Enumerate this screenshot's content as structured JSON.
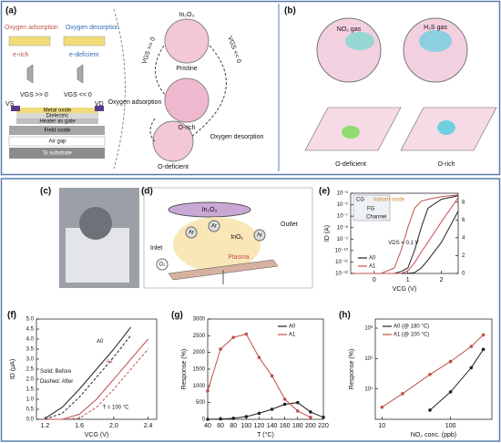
{
  "panels": {
    "a": {
      "label": "(a)",
      "oxygen_adsorption": "Oxygen adsorption",
      "oxygen_desorption": "Oxygen desorption",
      "e_rich": "e-rich",
      "e_deficient": "e-deficient",
      "vgs_pos": "VGS >> 0",
      "vgs_neg": "VGS << 0",
      "vs": "VS",
      "vd": "VD",
      "layers": [
        "Metal oxide",
        "Dielectric",
        "Heater as gate",
        "Field oxide",
        "Air gap",
        "Si substrate"
      ],
      "material": "In₂O₃",
      "states": [
        "Pristine",
        "O-rich",
        "O-deficient"
      ],
      "path_adsorption": "Oxygen adsorption",
      "path_desorption": "Oxygen desorption"
    },
    "b": {
      "label": "(b)",
      "gases": [
        "NO₂ gas",
        "H₂S gas"
      ],
      "states": [
        "O-deficient",
        "O-rich"
      ]
    },
    "c": {
      "label": "(c)"
    },
    "d": {
      "label": "(d)",
      "inlet": "Inlet",
      "outlet": "Outlet",
      "target": "In₂O₃",
      "plasma": "Plasma",
      "product": "InOₓ",
      "ion": "Ar",
      "oxygen": "O₂"
    },
    "e": {
      "label": "(e)",
      "inset": [
        "CG",
        "Indium oxide",
        "FG",
        "Channel"
      ]
    },
    "f": {
      "label": "(f)"
    },
    "g": {
      "label": "(g)"
    },
    "h": {
      "label": "(h)"
    }
  },
  "chart_data": [
    {
      "type": "line",
      "ylabel": "ID (A)",
      "xlabel": "VCG (V)",
      "ylog": true,
      "xlim": [
        -0.7,
        2.5
      ],
      "xticks": [
        0,
        1,
        2
      ],
      "ylim": [
        1e-12,
        1e-05
      ],
      "yticks": [
        {
          "value": 1e-12,
          "label": "10⁻¹²"
        },
        {
          "value": 1e-11,
          "label": "10⁻¹¹"
        },
        {
          "value": 1e-10,
          "label": "10⁻¹⁰"
        },
        {
          "value": 1e-09,
          "label": "10⁻⁹"
        },
        {
          "value": 1e-08,
          "label": "10⁻⁸"
        },
        {
          "value": 1e-07,
          "label": "10⁻⁷"
        },
        {
          "value": 1e-06,
          "label": "10⁻⁶"
        },
        {
          "value": 1e-05,
          "label": "10⁻⁵"
        }
      ],
      "y2lim": [
        0,
        9
      ],
      "y2ticks": [
        0,
        2,
        4,
        6,
        8
      ],
      "legend": "lower left",
      "annotations": [
        "VDS = 0.1 V"
      ],
      "x": [
        -0.6,
        -0.2,
        0.2,
        0.6,
        0.8,
        1.0,
        1.2,
        1.4,
        1.6,
        2.0,
        2.5
      ],
      "series": [
        {
          "name": "A0",
          "color": "#222222",
          "values": [
            1e-12,
            1e-12,
            1e-12,
            1e-12,
            1.5e-12,
            3e-12,
            1e-10,
            1e-08,
            5e-07,
            3e-06,
            6e-06
          ]
        },
        {
          "name": "A1",
          "color": "#c0504d",
          "values": [
            1e-12,
            1e-12,
            1e-12,
            3e-12,
            1e-10,
            1e-08,
            5e-07,
            2e-06,
            3e-06,
            5e-06,
            7e-06
          ]
        },
        {
          "name": "A0",
          "color": "#222222",
          "axis": "y2",
          "values": [
            0,
            0,
            0,
            0,
            0,
            0,
            0.1,
            0.6,
            1.5,
            3.5,
            7
          ]
        },
        {
          "name": "A1",
          "color": "#c0504d",
          "axis": "y2",
          "values": [
            0,
            0,
            0,
            0,
            0,
            0.3,
            1.2,
            2.4,
            3.5,
            5.8,
            8.5
          ]
        }
      ]
    },
    {
      "type": "line",
      "ylabel": "ID (μA)",
      "xlabel": "VCG (V)",
      "xlim": [
        1.1,
        2.5
      ],
      "xticks": [
        1.2,
        1.6,
        {
          "value": 2.0,
          "label": "2.0"
        },
        2.4
      ],
      "ylim": [
        0,
        5
      ],
      "yticks": [
        {
          "value": 0,
          "label": "0.0"
        },
        0.5,
        {
          "value": 1,
          "label": "1.0"
        },
        1.5,
        {
          "value": 2,
          "label": "2.0"
        },
        2.5,
        {
          "value": 3,
          "label": "3.0"
        },
        3.5,
        {
          "value": 4,
          "label": "4.0"
        },
        4.5,
        {
          "value": 5,
          "label": "5.0"
        }
      ],
      "annotations": [
        "A0",
        "A1",
        "Solid: Before",
        "Dashed: After",
        "T = 100 °C"
      ],
      "x": [
        1.2,
        1.4,
        1.6,
        1.8,
        2.0,
        2.2,
        2.4
      ],
      "series": [
        {
          "color": "#222222",
          "dash": false,
          "values": [
            0.05,
            0.6,
            1.5,
            2.5,
            3.5,
            4.6,
            null
          ]
        },
        {
          "color": "#222222",
          "dash": true,
          "values": [
            0,
            0.3,
            1.1,
            2.1,
            3.1,
            4.2,
            null
          ]
        },
        {
          "color": "#c0504d",
          "dash": false,
          "values": [
            0,
            0,
            0.25,
            1.0,
            2.0,
            3.0,
            4.0
          ]
        },
        {
          "color": "#c0504d",
          "dash": true,
          "values": [
            0,
            0,
            0.05,
            0.6,
            1.5,
            2.5,
            3.5
          ]
        }
      ]
    },
    {
      "type": "line",
      "ylabel": "Response (%)",
      "xlabel": "T (°C)",
      "marker": true,
      "legend": "upper right",
      "xlim": [
        40,
        220
      ],
      "xticks": [
        40,
        60,
        80,
        100,
        120,
        140,
        160,
        180,
        200,
        220
      ],
      "ylim": [
        0,
        3000
      ],
      "yticks": [
        0,
        500,
        1000,
        1500,
        2000,
        2500,
        3000
      ],
      "series": [
        {
          "name": "A0",
          "color": "#222222",
          "x": [
            40,
            60,
            80,
            100,
            120,
            140,
            160,
            180,
            200,
            220
          ],
          "values": [
            0,
            10,
            30,
            80,
            180,
            300,
            450,
            500,
            220,
            60
          ]
        },
        {
          "name": "A1",
          "color": "#c0504d",
          "x": [
            40,
            60,
            80,
            100,
            120,
            140,
            160,
            180,
            200
          ],
          "values": [
            850,
            2100,
            2450,
            2550,
            1850,
            1300,
            600,
            250,
            60
          ]
        }
      ]
    },
    {
      "type": "line",
      "ylabel": "Response (%)",
      "xlabel": "NO₂ conc. (ppb)",
      "marker": true,
      "xlog": true,
      "ylog": true,
      "legend": "upper left",
      "xlim": [
        8,
        400
      ],
      "xticks": [
        10,
        100
      ],
      "ylim": [
        1,
        2000
      ],
      "yticks": [
        {
          "value": 10,
          "label": "10¹"
        },
        {
          "value": 100,
          "label": "10²"
        },
        {
          "value": 1000,
          "label": "10³"
        }
      ],
      "series": [
        {
          "name": "A0 (@ 180 °C)",
          "color": "#222222",
          "x": [
            50,
            100,
            200,
            300
          ],
          "values": [
            2,
            8,
            50,
            200
          ]
        },
        {
          "name": "A1 (@ 100 °C)",
          "color": "#c0504d",
          "x": [
            10,
            20,
            50,
            100,
            200,
            300
          ],
          "values": [
            2.5,
            7,
            30,
            80,
            250,
            600
          ]
        }
      ]
    }
  ]
}
